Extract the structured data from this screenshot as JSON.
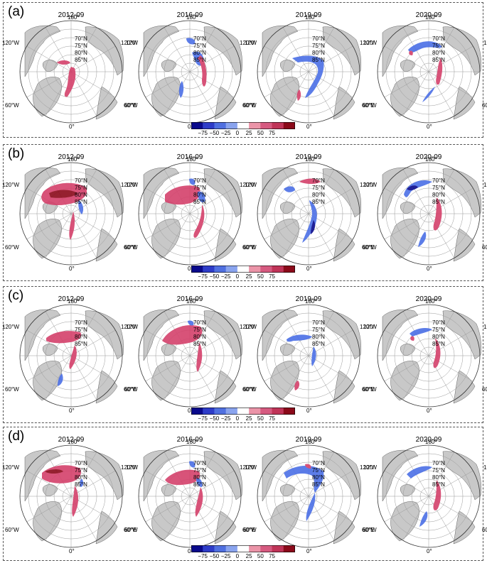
{
  "years": [
    "2012-09",
    "2016-09",
    "2019-09",
    "2020-09"
  ],
  "panels": [
    {
      "letter": "(a)"
    },
    {
      "letter": "(b)"
    },
    {
      "letter": "(c)"
    },
    {
      "letter": "(d)"
    }
  ],
  "lat_labels": [
    "70°N",
    "75°N",
    "80°N",
    "85°N"
  ],
  "lon_labels": {
    "top": "180°",
    "upper_left": "120°W",
    "upper_right": "120°E",
    "lower_left": "60°W",
    "lower_right": "60°E",
    "bottom": "0°"
  },
  "colorbar": {
    "ticks": [
      "−75",
      "−50",
      "−25",
      "0",
      "25",
      "50",
      "75"
    ],
    "colors": [
      "#0a0a8c",
      "#2e3cc8",
      "#5070e0",
      "#8aa4ee",
      "#ffffff",
      "#eb94a8",
      "#d65a80",
      "#c03458",
      "#8b0a1a"
    ]
  },
  "colors": {
    "land": "#c8c8c8",
    "positive": "#d4416b",
    "positive_strong": "#8b0a1a",
    "negative": "#4b6fe6",
    "negative_strong": "#0a0a8c"
  }
}
